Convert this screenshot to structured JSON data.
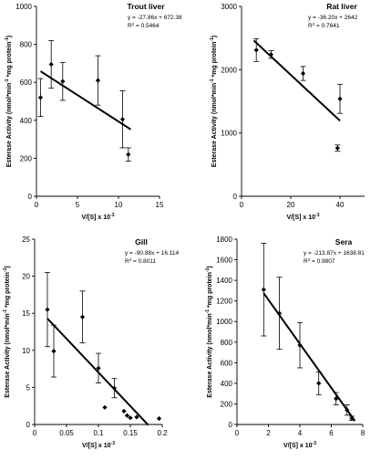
{
  "chart_data": [
    {
      "type": "scatter",
      "title": "Trout liver",
      "xlabel": "V/[S] x 10",
      "xlabel_exp": "-3",
      "ylabel": "Esterase Activity (nmol*min",
      "xlim": [
        0,
        15
      ],
      "ylim": [
        0,
        1000
      ],
      "xticks": [
        0,
        5,
        10,
        15
      ],
      "yticks": [
        0,
        200,
        400,
        600,
        800,
        1000
      ],
      "equation": "y = -27.86x + 672.38",
      "r2": "R",
      "r2_value": " = 0.5464",
      "x": [
        0.5,
        1.8,
        3.2,
        7.5,
        10.5,
        11.2
      ],
      "y": [
        520,
        695,
        605,
        610,
        405,
        220
      ],
      "err": [
        100,
        125,
        100,
        130,
        150,
        35
      ],
      "fit": {
        "slope": -27.86,
        "intercept": 672.38,
        "x_range": [
          0.5,
          11.5
        ]
      }
    },
    {
      "type": "scatter",
      "title": "Rat liver",
      "xlabel": "V/[S] x 10",
      "xlabel_exp": "-3",
      "ylabel": "Esterase Activity (nmol*min",
      "xlim": [
        0,
        50
      ],
      "ylim": [
        0,
        3000
      ],
      "xticks": [
        0,
        20,
        40
      ],
      "yticks": [
        0,
        1000,
        2000,
        3000
      ],
      "equation": "y = -36.20x + 2642",
      "r2": "R",
      "r2_value": " = 0.7641",
      "x": [
        6,
        12,
        25,
        40,
        39
      ],
      "y": [
        2310,
        2240,
        1940,
        1540,
        760
      ],
      "err": [
        180,
        60,
        110,
        230,
        50
      ],
      "fit": {
        "slope": -36.2,
        "intercept": 2642,
        "x_range": [
          5,
          40
        ]
      }
    },
    {
      "type": "scatter",
      "title": "Gill",
      "xlabel": "V/[S] x 10",
      "xlabel_exp": "-3",
      "ylabel": "Esterase Activity (nmol*min",
      "xlim": [
        0,
        0.2
      ],
      "ylim": [
        0,
        25
      ],
      "xticks": [
        0,
        0.05,
        0.1,
        0.15,
        0.2
      ],
      "xtick_labels": [
        "0",
        "0.05",
        "0.1",
        "0.15",
        "0.2"
      ],
      "yticks": [
        0,
        5,
        10,
        15,
        20,
        25
      ],
      "equation": "y = -90.88x + 16.114",
      "r2": "R",
      "r2_value": " = 0.8011",
      "x": [
        0.02,
        0.03,
        0.075,
        0.1,
        0.11,
        0.125,
        0.14,
        0.145,
        0.15,
        0.16,
        0.195
      ],
      "y": [
        15.5,
        9.9,
        14.5,
        7.6,
        2.3,
        4.9,
        1.8,
        1.2,
        0.9,
        1.0,
        0.8
      ],
      "err": [
        5.0,
        3.5,
        3.5,
        2.0,
        0,
        1.3,
        0,
        0,
        0,
        0,
        0
      ],
      "fit": {
        "slope": -90.88,
        "intercept": 16.114,
        "x_range": [
          0.02,
          0.178
        ]
      }
    },
    {
      "type": "scatter",
      "title": "Sera",
      "xlabel": "V/[S] x 10",
      "xlabel_exp": "-3",
      "ylabel": "Esterase Activity (nmol*min",
      "xlim": [
        0,
        8
      ],
      "ylim": [
        0,
        1800
      ],
      "xticks": [
        0,
        2,
        4,
        6,
        8
      ],
      "yticks": [
        0,
        200,
        400,
        600,
        800,
        1000,
        1200,
        1400,
        1600,
        1800
      ],
      "equation": "y = -213.87x + 1638.81",
      "r2": "R",
      "r2_value": " = 0.9807",
      "x": [
        1.7,
        2.7,
        4.0,
        5.2,
        6.3,
        7.0,
        7.3
      ],
      "y": [
        1310,
        1080,
        770,
        400,
        250,
        140,
        60
      ],
      "err": [
        450,
        350,
        220,
        110,
        60,
        50,
        20
      ],
      "fit": {
        "slope": -213.87,
        "intercept": 1638.81,
        "x_range": [
          1.7,
          7.5
        ]
      }
    }
  ],
  "ylabel_parts": [
    "Esterase Activity (nmol*min",
    "-1",
    " *mg protein",
    "-1",
    ")"
  ],
  "r2_exp": "2"
}
